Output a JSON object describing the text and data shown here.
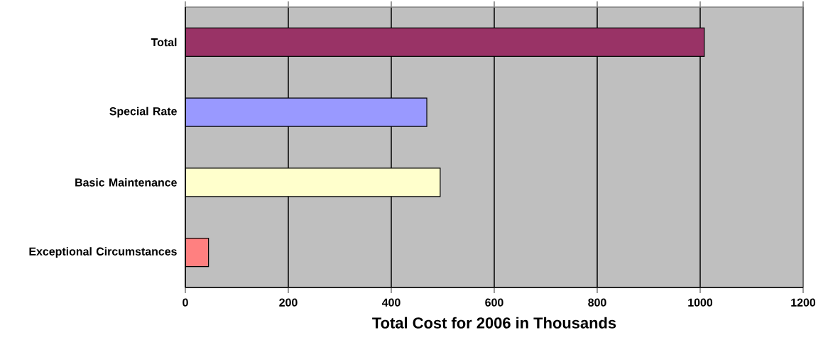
{
  "chart_data": {
    "type": "bar",
    "orientation": "horizontal",
    "xlabel": "Total Cost for 2006 in Thousands",
    "categories": [
      "Total",
      "Special Rate",
      "Basic Maintenance",
      "Exceptional Circumstances"
    ],
    "values": [
      1008,
      469,
      495,
      45
    ],
    "colors": [
      "#993366",
      "#9999ff",
      "#ffffcc",
      "#ff8080"
    ],
    "xlim": [
      0,
      1200
    ],
    "xticks": [
      0,
      200,
      400,
      600,
      800,
      1000,
      1200
    ],
    "grid": "x"
  }
}
